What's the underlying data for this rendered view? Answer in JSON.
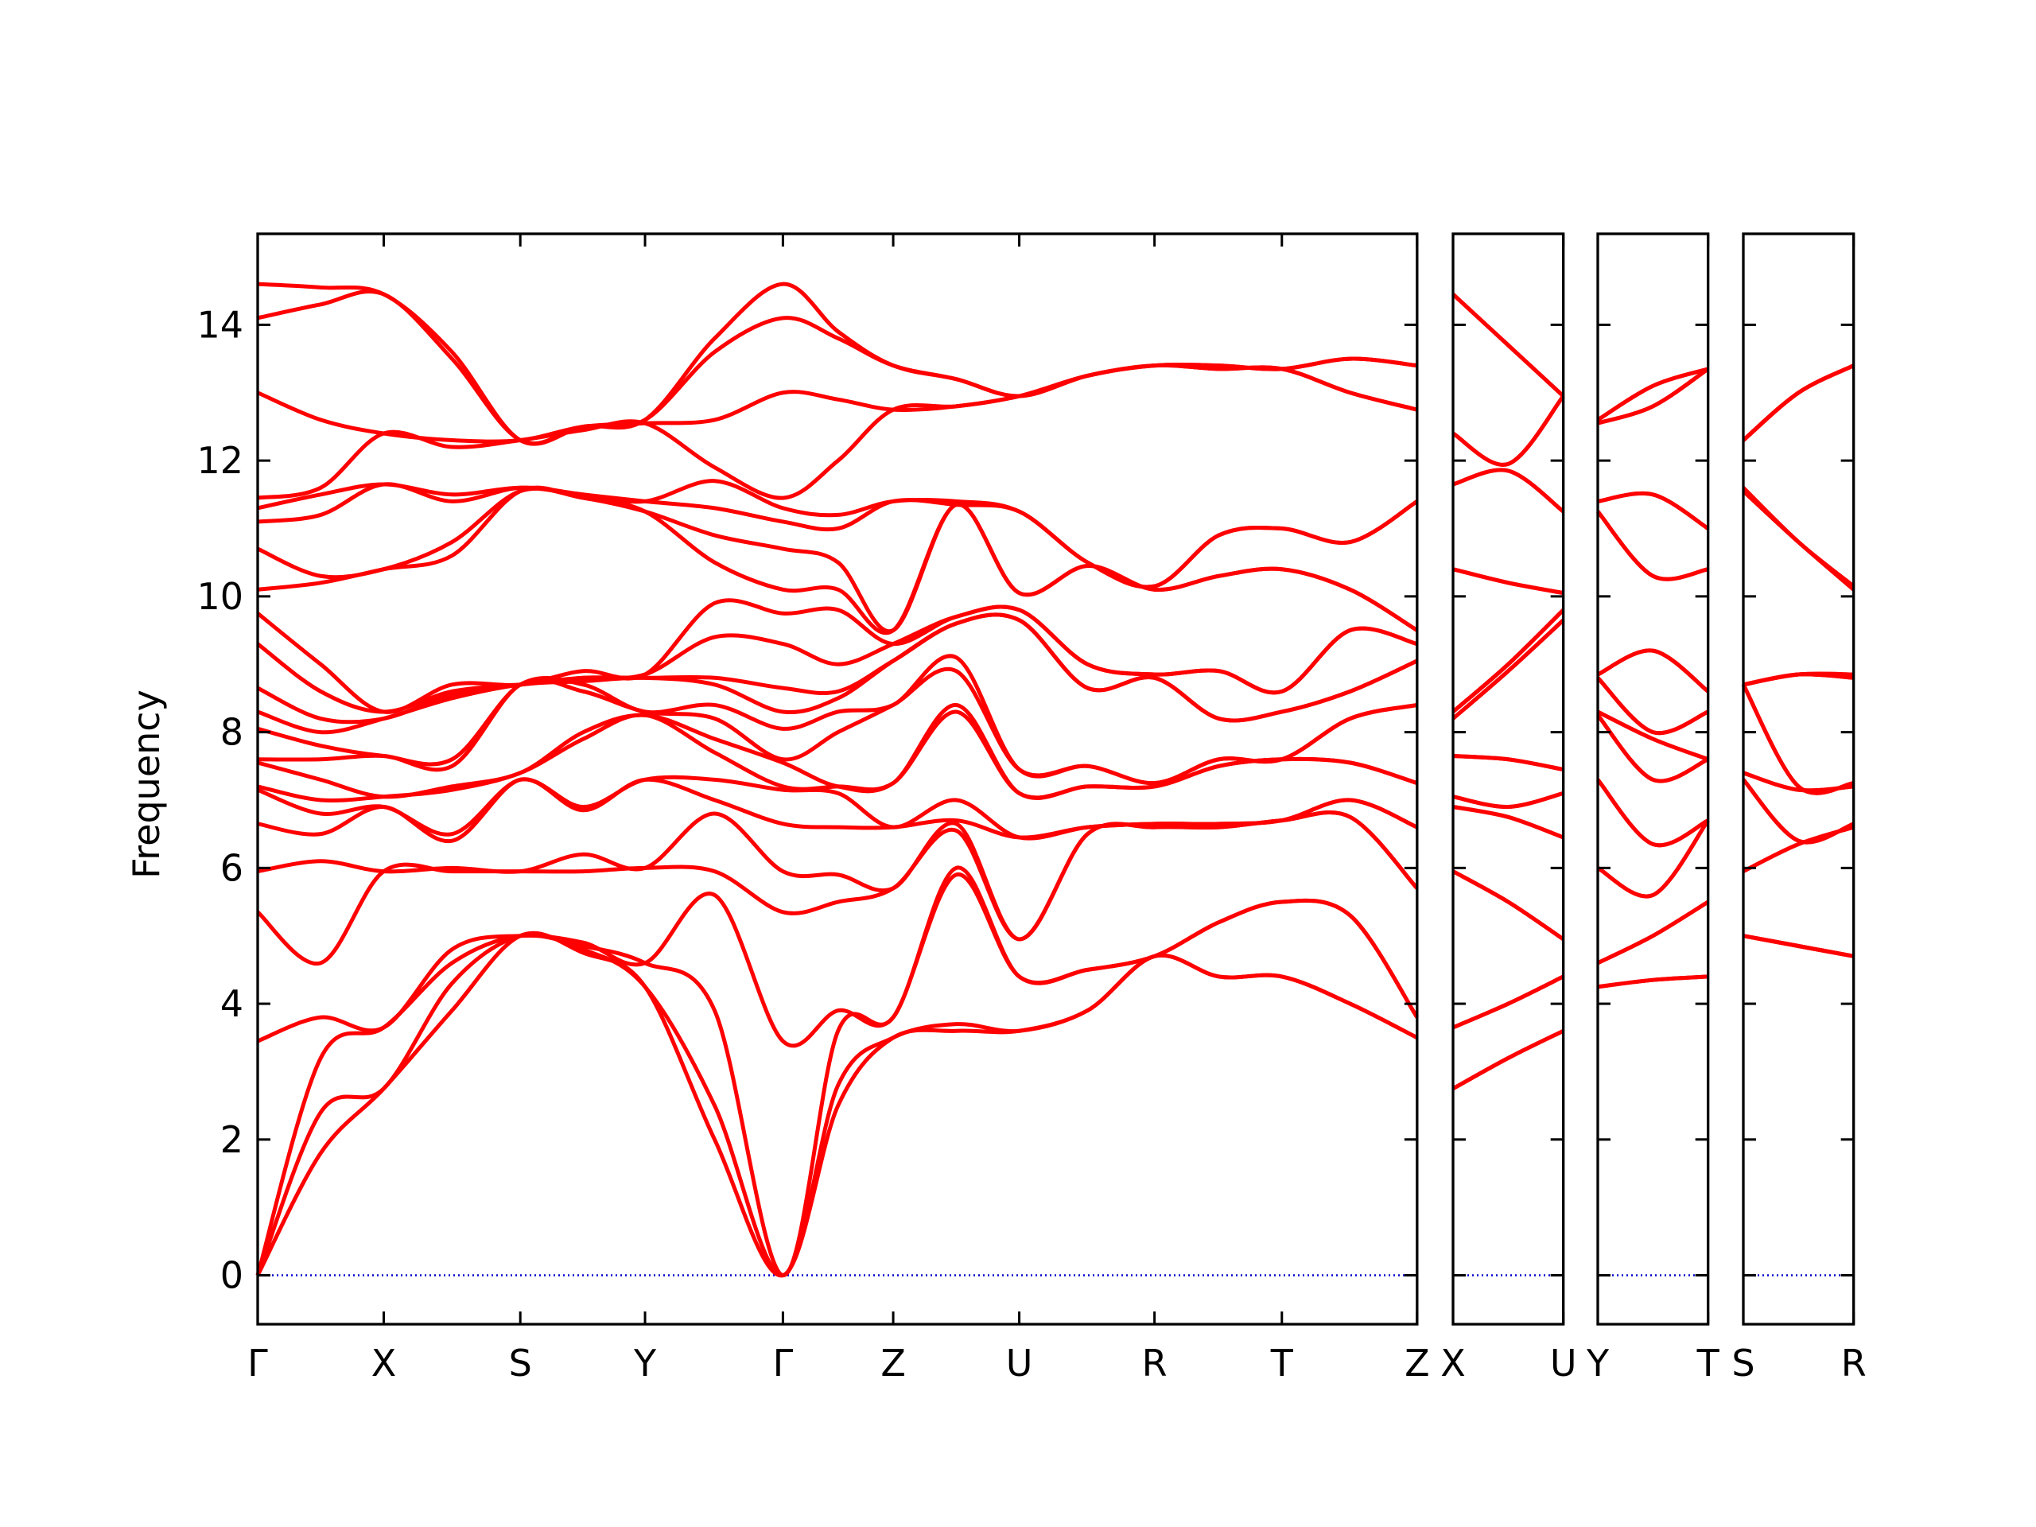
{
  "chart_data": [
    {
      "type": "line",
      "ylabel": "Frequency",
      "ylim": [
        -0.72,
        15.34
      ],
      "yticks": [
        0,
        2,
        4,
        6,
        8,
        10,
        12,
        14
      ],
      "show_ytick_labels": true,
      "xlim": [
        0,
        8.83
      ],
      "xticks": [
        {
          "value": 0,
          "label": "Γ"
        },
        {
          "value": 0.96,
          "label": "X"
        },
        {
          "value": 2.0,
          "label": "S"
        },
        {
          "value": 2.95,
          "label": "Y"
        },
        {
          "value": 4.0,
          "label": "Γ"
        },
        {
          "value": 4.84,
          "label": "Z"
        },
        {
          "value": 5.8,
          "label": "U"
        },
        {
          "value": 6.83,
          "label": "R"
        },
        {
          "value": 7.8,
          "label": "T"
        },
        {
          "value": 8.83,
          "label": "Z"
        }
      ],
      "hline": 0,
      "hline_color": "#0000cc",
      "color": "#ff0000",
      "x": [
        0,
        0.48,
        0.96,
        1.48,
        2.0,
        2.48,
        2.95,
        3.48,
        4.0,
        4.42,
        4.84,
        5.32,
        5.8,
        6.32,
        6.83,
        7.32,
        7.8,
        8.32,
        8.83
      ],
      "points": [
        [
          0,
          0,
          0,
          3.45,
          5.35,
          5.95,
          6.65,
          7.15,
          7.2,
          7.55,
          7.6,
          8.05,
          8.3,
          8.65,
          9.3,
          9.75,
          10.1,
          10.7,
          11.1,
          11.3,
          11.45,
          13.0,
          14.1,
          14.6
        ],
        [
          1.8,
          2.4,
          3.2,
          3.8,
          4.6,
          6.1,
          6.5,
          6.8,
          7.0,
          7.3,
          7.6,
          7.8,
          8.0,
          8.2,
          8.6,
          9.0,
          10.2,
          10.3,
          11.2,
          11.5,
          11.6,
          12.6,
          14.3,
          14.55
        ],
        [
          2.75,
          2.75,
          3.65,
          3.65,
          5.95,
          5.95,
          6.9,
          6.9,
          7.05,
          7.05,
          7.65,
          7.65,
          8.2,
          8.2,
          8.3,
          8.3,
          10.4,
          10.4,
          11.65,
          11.65,
          12.4,
          12.4,
          14.45,
          14.45
        ],
        [
          3.9,
          4.3,
          4.6,
          4.8,
          5.95,
          6.0,
          6.4,
          6.5,
          7.15,
          7.2,
          7.5,
          7.6,
          8.5,
          8.55,
          8.6,
          8.7,
          10.6,
          10.8,
          11.4,
          11.5,
          12.2,
          12.3,
          13.5,
          13.6
        ],
        [
          5.0,
          5.0,
          5.0,
          5.0,
          5.95,
          5.95,
          7.3,
          7.3,
          7.4,
          7.4,
          8.7,
          8.7,
          8.7,
          8.7,
          8.7,
          8.7,
          11.55,
          11.55,
          11.6,
          11.6,
          12.3,
          12.3,
          12.3,
          12.3
        ],
        [
          4.75,
          4.8,
          4.85,
          4.9,
          5.95,
          6.2,
          6.85,
          6.9,
          7.9,
          8.0,
          8.6,
          8.7,
          8.75,
          8.8,
          8.8,
          8.9,
          11.45,
          11.45,
          11.5,
          11.5,
          12.45,
          12.5,
          12.5,
          12.5
        ],
        [
          4.25,
          4.25,
          4.6,
          4.6,
          6.0,
          6.0,
          7.3,
          7.3,
          8.25,
          8.25,
          8.3,
          8.3,
          8.8,
          8.8,
          8.85,
          8.85,
          11.25,
          11.25,
          11.4,
          11.4,
          12.55,
          12.55,
          12.6,
          12.6
        ],
        [
          2.0,
          2.5,
          3.9,
          5.6,
          5.95,
          6.8,
          7.0,
          7.3,
          7.7,
          7.9,
          8.2,
          8.4,
          8.7,
          8.8,
          9.4,
          9.9,
          10.5,
          10.9,
          11.3,
          11.7,
          11.9,
          12.6,
          13.6,
          13.8
        ],
        [
          0,
          0,
          0,
          3.45,
          5.35,
          5.95,
          6.65,
          7.15,
          7.2,
          7.55,
          7.6,
          8.05,
          8.3,
          8.65,
          9.3,
          9.75,
          10.1,
          10.7,
          11.1,
          11.3,
          11.45,
          13.0,
          14.1,
          14.6
        ],
        [
          2.5,
          2.8,
          3.6,
          3.9,
          5.5,
          5.9,
          6.6,
          7.1,
          7.2,
          7.2,
          8.0,
          8.3,
          8.5,
          8.6,
          9.0,
          9.8,
          10.1,
          10.5,
          11.0,
          11.2,
          12.0,
          12.9,
          13.8,
          13.9
        ],
        [
          3.5,
          3.5,
          3.8,
          3.8,
          5.7,
          5.7,
          6.6,
          6.6,
          7.25,
          7.25,
          8.4,
          8.4,
          9.05,
          9.05,
          9.3,
          9.3,
          9.5,
          9.5,
          11.4,
          11.4,
          12.75,
          12.75,
          13.4,
          13.4
        ],
        [
          3.6,
          3.7,
          5.9,
          6.0,
          6.55,
          6.65,
          6.7,
          7.0,
          8.3,
          8.4,
          8.9,
          9.1,
          9.6,
          9.6,
          9.7,
          9.7,
          11.35,
          11.35,
          11.35,
          11.4,
          12.8,
          12.8,
          13.2,
          13.2
        ],
        [
          3.6,
          3.6,
          4.4,
          4.4,
          4.95,
          4.95,
          6.45,
          6.45,
          7.1,
          7.1,
          7.45,
          7.45,
          9.65,
          9.65,
          9.8,
          9.8,
          10.05,
          10.05,
          11.25,
          11.25,
          12.95,
          12.95,
          12.95,
          12.95
        ],
        [
          3.9,
          3.9,
          4.5,
          4.5,
          6.5,
          6.5,
          6.6,
          6.6,
          7.2,
          7.2,
          7.5,
          7.5,
          8.65,
          8.65,
          9.0,
          9.0,
          10.45,
          10.45,
          10.5,
          10.5,
          13.25,
          13.25,
          13.25,
          13.25
        ],
        [
          4.7,
          4.7,
          4.7,
          4.7,
          6.6,
          6.6,
          6.65,
          6.65,
          7.2,
          7.2,
          7.25,
          7.25,
          8.8,
          8.8,
          8.85,
          8.85,
          10.1,
          10.1,
          10.15,
          10.15,
          13.4,
          13.4,
          13.4,
          13.4
        ],
        [
          4.4,
          4.4,
          5.2,
          5.2,
          6.6,
          6.6,
          6.65,
          6.65,
          7.5,
          7.5,
          7.6,
          7.6,
          8.2,
          8.2,
          8.9,
          8.9,
          10.3,
          10.3,
          10.9,
          10.9,
          13.35,
          13.35,
          13.4,
          13.4
        ],
        [
          4.4,
          4.4,
          5.5,
          5.5,
          6.7,
          6.7,
          6.7,
          6.7,
          7.6,
          7.6,
          7.6,
          7.6,
          8.3,
          8.3,
          8.6,
          8.6,
          10.4,
          10.4,
          11.0,
          11.0,
          13.35,
          13.35,
          13.35,
          13.35
        ],
        [
          4.0,
          4.0,
          5.3,
          5.3,
          6.75,
          6.75,
          7.0,
          7.0,
          7.55,
          7.55,
          8.2,
          8.2,
          8.6,
          8.6,
          9.5,
          9.5,
          10.1,
          10.1,
          10.8,
          10.8,
          13.0,
          13.0,
          13.5,
          13.5
        ],
        [
          3.5,
          3.5,
          3.8,
          3.8,
          5.7,
          5.7,
          6.6,
          6.6,
          7.25,
          7.25,
          8.4,
          8.4,
          9.05,
          9.05,
          9.3,
          9.3,
          9.5,
          9.5,
          11.4,
          11.4,
          12.75,
          12.75,
          13.4,
          13.4
        ]
      ]
    },
    {
      "type": "line",
      "ylim": [
        -0.72,
        15.34
      ],
      "yticks": [
        0,
        2,
        4,
        6,
        8,
        10,
        12,
        14
      ],
      "show_ytick_labels": false,
      "xlim": [
        0,
        0.84
      ],
      "xticks": [
        {
          "value": 0,
          "label": "X"
        },
        {
          "value": 0.84,
          "label": "U"
        }
      ],
      "hline": 0,
      "hline_color": "#0000cc",
      "color": "#ff0000",
      "x": [
        0,
        0.42,
        0.84
      ],
      "points": [
        [
          2.75,
          2.75,
          3.65,
          3.65,
          5.95,
          5.95,
          6.9,
          6.9,
          7.05,
          7.05,
          7.65,
          7.65,
          8.2,
          8.2,
          8.3,
          8.3,
          10.4,
          10.4,
          11.65,
          11.65,
          12.4,
          12.4,
          14.45,
          14.45
        ],
        [
          3.2,
          3.2,
          4.0,
          4.0,
          5.5,
          5.5,
          6.75,
          6.75,
          6.9,
          6.9,
          7.6,
          7.6,
          8.9,
          8.9,
          9.0,
          9.0,
          10.2,
          10.2,
          11.85,
          11.85,
          11.95,
          11.95,
          13.7,
          13.7
        ],
        [
          3.6,
          3.6,
          4.4,
          4.4,
          4.95,
          4.95,
          6.45,
          6.45,
          7.1,
          7.1,
          7.45,
          7.45,
          9.65,
          9.65,
          9.8,
          9.8,
          10.05,
          10.05,
          11.25,
          11.25,
          12.95,
          12.95,
          12.95,
          12.95
        ]
      ]
    },
    {
      "type": "line",
      "ylim": [
        -0.72,
        15.34
      ],
      "yticks": [
        0,
        2,
        4,
        6,
        8,
        10,
        12,
        14
      ],
      "show_ytick_labels": false,
      "xlim": [
        0,
        0.84
      ],
      "xticks": [
        {
          "value": 0,
          "label": "Y"
        },
        {
          "value": 0.84,
          "label": "T"
        }
      ],
      "hline": 0,
      "hline_color": "#0000cc",
      "color": "#ff0000",
      "x": [
        0,
        0.42,
        0.84
      ],
      "points": [
        [
          4.25,
          4.25,
          4.6,
          4.6,
          6.0,
          6.0,
          7.3,
          7.3,
          8.25,
          8.25,
          8.3,
          8.3,
          8.8,
          8.8,
          8.85,
          8.85,
          11.25,
          11.25,
          11.4,
          11.4,
          12.55,
          12.55,
          12.6,
          12.6
        ],
        [
          4.35,
          4.35,
          5.0,
          5.0,
          5.6,
          5.6,
          6.35,
          6.35,
          7.3,
          7.3,
          7.9,
          7.9,
          8.0,
          8.0,
          9.2,
          9.2,
          10.3,
          10.3,
          11.5,
          11.5,
          12.8,
          12.8,
          13.1,
          13.1
        ],
        [
          4.4,
          4.4,
          5.5,
          5.5,
          6.7,
          6.7,
          6.7,
          6.7,
          7.6,
          7.6,
          7.6,
          7.6,
          8.3,
          8.3,
          8.6,
          8.6,
          10.4,
          10.4,
          11.0,
          11.0,
          13.35,
          13.35,
          13.35,
          13.35
        ]
      ]
    },
    {
      "type": "line",
      "ylim": [
        -0.72,
        15.34
      ],
      "yticks": [
        0,
        2,
        4,
        6,
        8,
        10,
        12,
        14
      ],
      "show_ytick_labels": false,
      "xlim": [
        0,
        0.84
      ],
      "xticks": [
        {
          "value": 0,
          "label": "S"
        },
        {
          "value": 0.84,
          "label": "R"
        }
      ],
      "hline": 0,
      "hline_color": "#0000cc",
      "color": "#ff0000",
      "x": [
        0,
        0.42,
        0.84
      ],
      "points": [
        [
          5.0,
          5.0,
          5.0,
          5.0,
          5.95,
          5.95,
          7.3,
          7.3,
          7.4,
          7.4,
          8.7,
          8.7,
          8.7,
          8.7,
          8.7,
          8.7,
          11.55,
          11.55,
          11.6,
          11.6,
          12.3,
          12.3,
          12.3,
          12.3
        ],
        [
          4.85,
          4.85,
          4.85,
          4.85,
          6.35,
          6.35,
          6.4,
          6.4,
          7.15,
          7.15,
          7.2,
          7.2,
          8.85,
          8.85,
          8.85,
          8.85,
          10.8,
          10.8,
          10.8,
          10.8,
          13.0,
          13.0,
          13.0,
          13.0
        ],
        [
          4.7,
          4.7,
          4.7,
          4.7,
          6.6,
          6.6,
          6.65,
          6.65,
          7.2,
          7.2,
          7.25,
          7.25,
          8.8,
          8.8,
          8.85,
          8.85,
          10.1,
          10.1,
          10.15,
          10.15,
          13.4,
          13.4,
          13.4,
          13.4
        ]
      ]
    }
  ]
}
